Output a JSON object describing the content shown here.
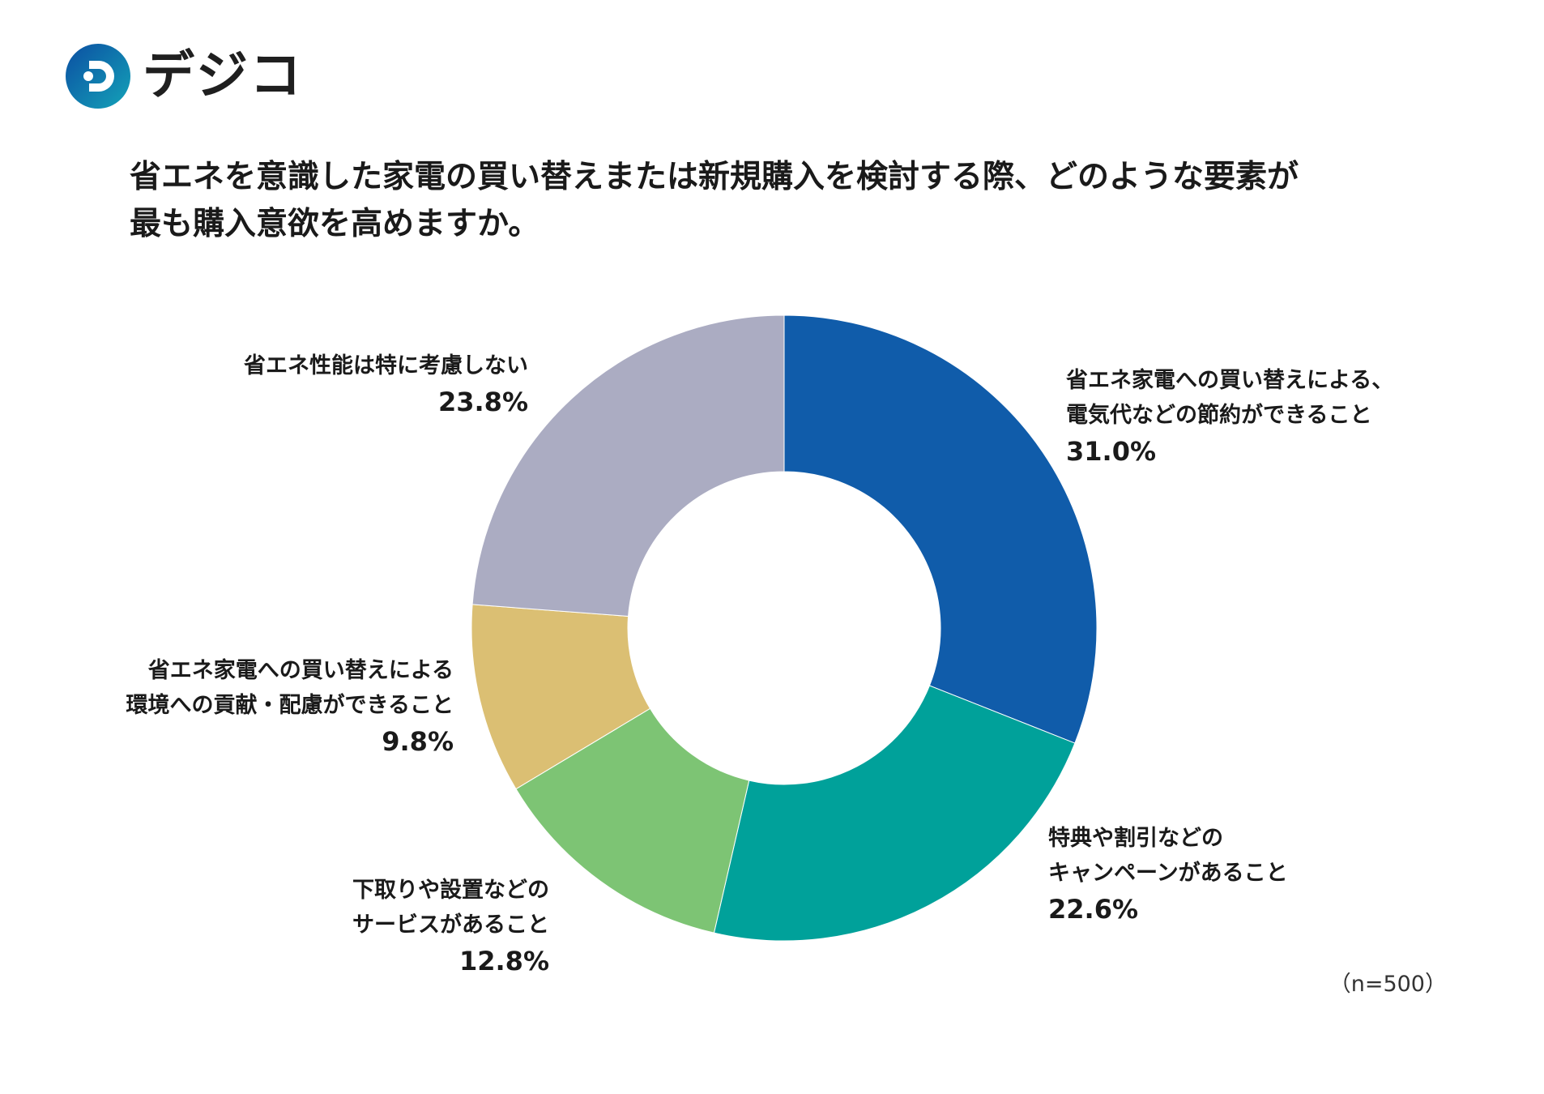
{
  "logo": {
    "text": "デジコ",
    "icon": "d-logo-icon",
    "colors": [
      "#0b4ea2",
      "#14a3b8"
    ]
  },
  "title": {
    "line1": "省エネを意識した家電の買い替えまたは新規購入を検討する際、どのような要素が",
    "line2": "最も購入意欲を高めますか。"
  },
  "chart_data": {
    "type": "pie",
    "variant": "donut",
    "title": "省エネを意識した家電の買い替えまたは新規購入を検討する際、どのような要素が最も購入意欲を高めますか。",
    "slices": [
      {
        "label_lines": [
          "省エネ家電への買い替えによる、",
          "電気代などの節約ができること"
        ],
        "value": 31.0,
        "value_label": "31.0%",
        "color": "#105caa"
      },
      {
        "label_lines": [
          "特典や割引などの",
          "キャンペーンがあること"
        ],
        "value": 22.6,
        "value_label": "22.6%",
        "color": "#00a19a"
      },
      {
        "label_lines": [
          "下取りや設置などの",
          "サービスがあること"
        ],
        "value": 12.8,
        "value_label": "12.8%",
        "color": "#7dc474"
      },
      {
        "label_lines": [
          "省エネ家電への買い替えによる",
          "環境への貢献・配慮ができること"
        ],
        "value": 9.8,
        "value_label": "9.8%",
        "color": "#dbbf73"
      },
      {
        "label_lines": [
          "省エネ性能は特に考慮しない"
        ],
        "value": 23.8,
        "value_label": "23.8%",
        "color": "#abacc2"
      }
    ],
    "start": "top",
    "direction": "clockwise",
    "note": "（n=500）"
  }
}
